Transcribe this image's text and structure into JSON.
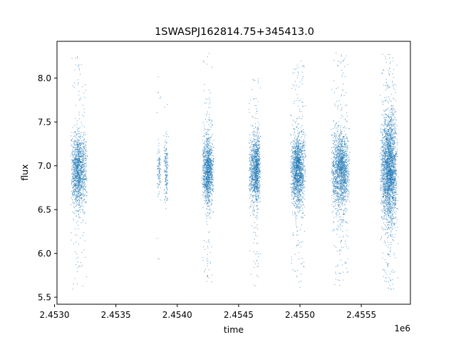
{
  "chart_data": {
    "type": "scatter",
    "title": "1SWASPJ162814.75+345413.0",
    "xlabel": "time",
    "ylabel": "flux",
    "x_offset_label": "1e6",
    "xlim": [
      2.45302,
      2.4559
    ],
    "ylim": [
      5.42,
      8.42
    ],
    "x_ticks": [
      2.453,
      2.4535,
      2.454,
      2.4545,
      2.455,
      2.4555
    ],
    "x_tick_labels": [
      "2.4530",
      "2.4535",
      "2.4540",
      "2.4545",
      "2.4550",
      "2.4555"
    ],
    "y_ticks": [
      5.5,
      6.0,
      6.5,
      7.0,
      7.5,
      8.0
    ],
    "y_tick_labels": [
      "5.5",
      "6.0",
      "6.5",
      "7.0",
      "7.5",
      "8.0"
    ],
    "grid": false,
    "marker_color": "#1f77b4",
    "center_flux": 6.95,
    "series": [
      {
        "clusters": [
          {
            "x_range": [
              2.45313,
              2.45327
            ],
            "x_peak": 2.45319,
            "n": 1400,
            "spread": 0.2,
            "y_min": 5.58,
            "y_max": 8.25
          },
          {
            "x_range": [
              2.45383,
              2.45387
            ],
            "x_peak": 2.45385,
            "n": 110,
            "spread": 0.13,
            "y_min": 5.75,
            "y_max": 8.15
          },
          {
            "x_range": [
              2.45389,
              2.45393
            ],
            "x_peak": 2.45391,
            "n": 170,
            "spread": 0.17,
            "y_min": 6.3,
            "y_max": 7.7
          },
          {
            "x_range": [
              2.4542,
              2.4543
            ],
            "x_peak": 2.45425,
            "n": 1200,
            "spread": 0.2,
            "y_min": 5.6,
            "y_max": 8.3
          },
          {
            "x_range": [
              2.45458,
              2.45468
            ],
            "x_peak": 2.45465,
            "n": 1200,
            "spread": 0.2,
            "y_min": 5.58,
            "y_max": 8.0
          },
          {
            "x_range": [
              2.45492,
              2.45505
            ],
            "x_peak": 2.45498,
            "n": 1600,
            "spread": 0.2,
            "y_min": 5.6,
            "y_max": 8.25
          },
          {
            "x_range": [
              2.45525,
              2.45541
            ],
            "x_peak": 2.45534,
            "n": 1700,
            "spread": 0.22,
            "y_min": 5.6,
            "y_max": 8.3
          },
          {
            "x_range": [
              2.45565,
              2.4558
            ],
            "x_peak": 2.45573,
            "n": 2600,
            "spread": 0.3,
            "y_min": 5.55,
            "y_max": 8.3
          }
        ]
      }
    ]
  }
}
